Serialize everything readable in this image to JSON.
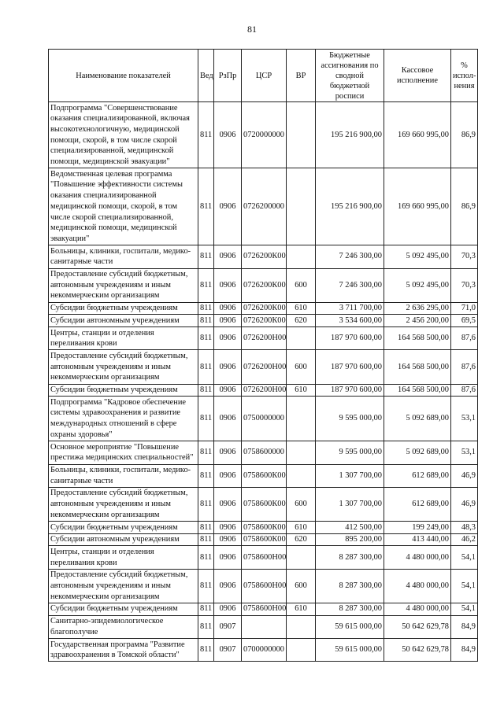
{
  "page_number": "81",
  "headers": [
    "Наименование показателей",
    "Вед",
    "РзПр",
    "ЦСР",
    "ВР",
    "Бюджетные ассигнования по сводной бюджетной росписи",
    "Кассовое исполнение",
    "% испол-нения"
  ],
  "rows": [
    {
      "name": "Подпрограмма \"Совершенствование оказания специализированной, включая высокотехнологичную, медицинской помощи, скорой, в том числе скорой специализированной, медицинской помощи, медицинской эвакуации\"",
      "ved": "811",
      "rzpr": "0906",
      "csr": "0720000000",
      "vr": "",
      "budget": "195 216 900,00",
      "kass": "169 660 995,00",
      "pct": "86,9"
    },
    {
      "name": "Ведомственная целевая программа \"Повышение эффективности системы оказания специализированной медицинской помощи, скорой, в том числе скорой специализированной, медицинской помощи, медицинской эвакуации\"",
      "ved": "811",
      "rzpr": "0906",
      "csr": "0726200000",
      "vr": "",
      "budget": "195 216 900,00",
      "kass": "169 660 995,00",
      "pct": "86,9"
    },
    {
      "name": "Больницы, клиники, госпитали, медико-санитарные части",
      "ved": "811",
      "rzpr": "0906",
      "csr": "0726200К00",
      "vr": "",
      "budget": "7 246 300,00",
      "kass": "5 092 495,00",
      "pct": "70,3"
    },
    {
      "name": "Предоставление субсидий бюджетным, автономным учреждениям и иным некоммерческим организациям",
      "ved": "811",
      "rzpr": "0906",
      "csr": "0726200К00",
      "vr": "600",
      "budget": "7 246 300,00",
      "kass": "5 092 495,00",
      "pct": "70,3"
    },
    {
      "name": "Субсидии бюджетным учреждениям",
      "ved": "811",
      "rzpr": "0906",
      "csr": "0726200К00",
      "vr": "610",
      "budget": "3 711 700,00",
      "kass": "2 636 295,00",
      "pct": "71,0"
    },
    {
      "name": "Субсидии автономным учреждениям",
      "ved": "811",
      "rzpr": "0906",
      "csr": "0726200К00",
      "vr": "620",
      "budget": "3 534 600,00",
      "kass": "2 456 200,00",
      "pct": "69,5"
    },
    {
      "name": "Центры, станции и отделения переливания крови",
      "ved": "811",
      "rzpr": "0906",
      "csr": "0726200Н00",
      "vr": "",
      "budget": "187 970 600,00",
      "kass": "164 568 500,00",
      "pct": "87,6"
    },
    {
      "name": "Предоставление субсидий бюджетным, автономным учреждениям и иным некоммерческим организациям",
      "ved": "811",
      "rzpr": "0906",
      "csr": "0726200Н00",
      "vr": "600",
      "budget": "187 970 600,00",
      "kass": "164 568 500,00",
      "pct": "87,6"
    },
    {
      "name": "Субсидии бюджетным учреждениям",
      "ved": "811",
      "rzpr": "0906",
      "csr": "0726200Н00",
      "vr": "610",
      "budget": "187 970 600,00",
      "kass": "164 568 500,00",
      "pct": "87,6"
    },
    {
      "name": "Подпрограмма \"Кадровое обеспечение системы здравоохранения и развитие международных отношений в сфере охраны здоровья\"",
      "ved": "811",
      "rzpr": "0906",
      "csr": "0750000000",
      "vr": "",
      "budget": "9 595 000,00",
      "kass": "5 092 689,00",
      "pct": "53,1"
    },
    {
      "name": "Основное мероприятие \"Повышение престижа медицинских специальностей\"",
      "ved": "811",
      "rzpr": "0906",
      "csr": "0758600000",
      "vr": "",
      "budget": "9 595 000,00",
      "kass": "5 092 689,00",
      "pct": "53,1"
    },
    {
      "name": "Больницы, клиники, госпитали, медико-санитарные части",
      "ved": "811",
      "rzpr": "0906",
      "csr": "0758600К00",
      "vr": "",
      "budget": "1 307 700,00",
      "kass": "612 689,00",
      "pct": "46,9"
    },
    {
      "name": "Предоставление субсидий бюджетным, автономным учреждениям и иным некоммерческим организациям",
      "ved": "811",
      "rzpr": "0906",
      "csr": "0758600К00",
      "vr": "600",
      "budget": "1 307 700,00",
      "kass": "612 689,00",
      "pct": "46,9"
    },
    {
      "name": "Субсидии бюджетным учреждениям",
      "ved": "811",
      "rzpr": "0906",
      "csr": "0758600К00",
      "vr": "610",
      "budget": "412 500,00",
      "kass": "199 249,00",
      "pct": "48,3"
    },
    {
      "name": "Субсидии автономным учреждениям",
      "ved": "811",
      "rzpr": "0906",
      "csr": "0758600К00",
      "vr": "620",
      "budget": "895 200,00",
      "kass": "413 440,00",
      "pct": "46,2"
    },
    {
      "name": "Центры, станции и отделения переливания крови",
      "ved": "811",
      "rzpr": "0906",
      "csr": "0758600Н00",
      "vr": "",
      "budget": "8 287 300,00",
      "kass": "4 480 000,00",
      "pct": "54,1"
    },
    {
      "name": "Предоставление субсидий бюджетным, автономным учреждениям и иным некоммерческим организациям",
      "ved": "811",
      "rzpr": "0906",
      "csr": "0758600Н00",
      "vr": "600",
      "budget": "8 287 300,00",
      "kass": "4 480 000,00",
      "pct": "54,1"
    },
    {
      "name": "Субсидии бюджетным учреждениям",
      "ved": "811",
      "rzpr": "0906",
      "csr": "0758600Н00",
      "vr": "610",
      "budget": "8 287 300,00",
      "kass": "4 480 000,00",
      "pct": "54,1"
    },
    {
      "name": "Санитарно-эпидемиологическое благополучие",
      "ved": "811",
      "rzpr": "0907",
      "csr": "",
      "vr": "",
      "budget": "59 615 000,00",
      "kass": "50 642 629,78",
      "pct": "84,9"
    },
    {
      "name": "Государственная программа \"Развитие здравоохранения в Томской области\"",
      "ved": "811",
      "rzpr": "0907",
      "csr": "0700000000",
      "vr": "",
      "budget": "59 615 000,00",
      "kass": "50 642 629,78",
      "pct": "84,9"
    }
  ]
}
